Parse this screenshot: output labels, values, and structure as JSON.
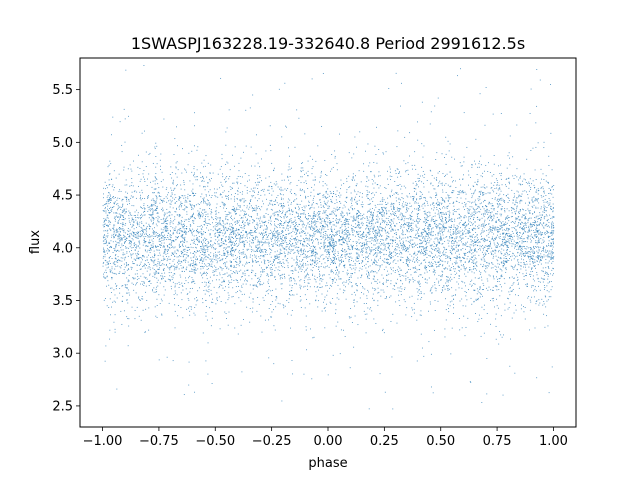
{
  "chart_data": {
    "type": "scatter",
    "title": "1SWASPJ163228.19-332640.8 Period 2991612.5s",
    "xlabel": "phase",
    "ylabel": "flux",
    "xlim": [
      -1.1,
      1.1
    ],
    "ylim": [
      2.3,
      5.8
    ],
    "xticks": [
      -1.0,
      -0.75,
      -0.5,
      -0.25,
      0.0,
      0.25,
      0.5,
      0.75,
      1.0
    ],
    "xtick_labels": [
      "−1.00",
      "−0.75",
      "−0.50",
      "−0.25",
      "0.00",
      "0.25",
      "0.50",
      "0.75",
      "1.00"
    ],
    "yticks": [
      2.5,
      3.0,
      3.5,
      4.0,
      4.5,
      5.0,
      5.5
    ],
    "ytick_labels": [
      "2.5",
      "3.0",
      "3.5",
      "4.0",
      "4.5",
      "5.0",
      "5.5"
    ],
    "grid": false,
    "series": [
      {
        "color": "#1f77b4",
        "phase_range": [
          -1.0,
          1.0
        ],
        "median_flux": 4.1,
        "typical_spread": [
          3.6,
          4.6
        ],
        "approx_points": 9000
      }
    ]
  }
}
